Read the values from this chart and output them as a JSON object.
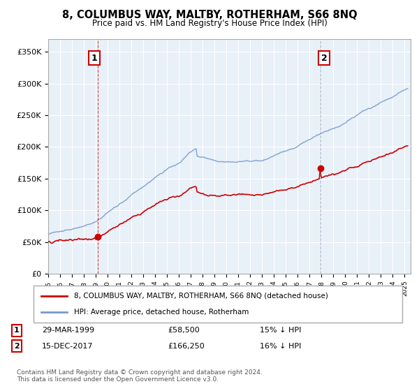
{
  "title": "8, COLUMBUS WAY, MALTBY, ROTHERHAM, S66 8NQ",
  "subtitle": "Price paid vs. HM Land Registry's House Price Index (HPI)",
  "property_label": "8, COLUMBUS WAY, MALTBY, ROTHERHAM, S66 8NQ (detached house)",
  "hpi_label": "HPI: Average price, detached house, Rotherham",
  "property_color": "#cc0000",
  "hpi_color": "#7799cc",
  "sale1_date": "29-MAR-1999",
  "sale1_price": 58500,
  "sale1_note": "15% ↓ HPI",
  "sale2_date": "15-DEC-2017",
  "sale2_price": 166250,
  "sale2_note": "16% ↓ HPI",
  "ylabel_ticks": [
    "£0",
    "£50K",
    "£100K",
    "£150K",
    "£200K",
    "£250K",
    "£300K",
    "£350K"
  ],
  "ylabel_values": [
    0,
    50000,
    100000,
    150000,
    200000,
    250000,
    300000,
    350000
  ],
  "ylim": [
    0,
    370000
  ],
  "background_color": "#ffffff",
  "plot_bg_color": "#e8f0f8",
  "grid_color": "#ffffff",
  "footnote": "Contains HM Land Registry data © Crown copyright and database right 2024.\nThis data is licensed under the Open Government Licence v3.0."
}
